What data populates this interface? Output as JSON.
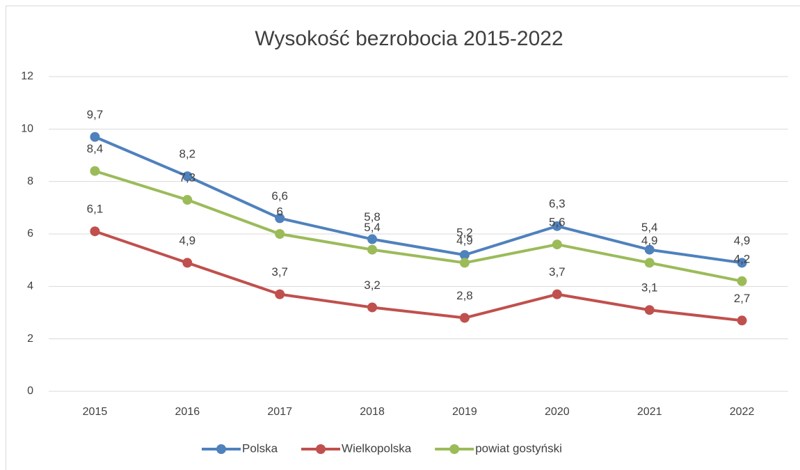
{
  "chart_data": {
    "type": "line",
    "title": "Wysokość bezrobocia 2015-2022",
    "categories": [
      "2015",
      "2016",
      "2017",
      "2018",
      "2019",
      "2020",
      "2021",
      "2022"
    ],
    "series": [
      {
        "name": "Polska",
        "color": "#4f81bd",
        "values": [
          9.7,
          8.2,
          6.6,
          5.8,
          5.2,
          6.3,
          5.4,
          4.9
        ],
        "value_labels": [
          "9,7",
          "8,2",
          "6,6",
          "5,8",
          "5,2",
          "6,3",
          "5,4",
          "4,9"
        ]
      },
      {
        "name": "Wielkopolska",
        "color": "#c0504d",
        "values": [
          6.1,
          4.9,
          3.7,
          3.2,
          2.8,
          3.7,
          3.1,
          2.7
        ],
        "value_labels": [
          "6,1",
          "4,9",
          "3,7",
          "3,2",
          "2,8",
          "3,7",
          "3,1",
          "2,7"
        ]
      },
      {
        "name": "powiat gostyński",
        "color": "#9bbb59",
        "values": [
          8.4,
          7.3,
          6,
          5.4,
          4.9,
          5.6,
          4.9,
          4.2
        ],
        "value_labels": [
          "8,4",
          "7,3",
          "6",
          "5,4",
          "4,9",
          "5,6",
          "4,9",
          "4,2"
        ]
      }
    ],
    "ylim": [
      0,
      12
    ],
    "yticks": [
      0,
      2,
      4,
      6,
      8,
      10,
      12
    ],
    "grid": true,
    "legend": "bottom"
  }
}
